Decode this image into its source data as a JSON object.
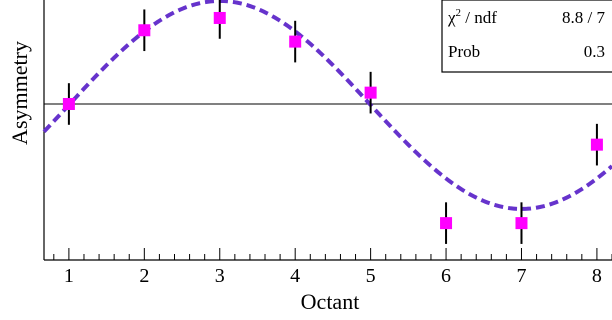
{
  "chart_data": {
    "type": "scatter",
    "xlabel": "Octant",
    "ylabel": "Asymmetry",
    "xlim": [
      0.67,
      8.2
    ],
    "ylim": [
      -1.65,
      1.1
    ],
    "x_ticks": [
      1,
      2,
      3,
      4,
      5,
      6,
      7,
      8
    ],
    "x_minor_tick_step": 0.2,
    "reference_line_y": 0,
    "series": [
      {
        "kind": "points_with_errors",
        "color": "#ff00ff",
        "points": [
          {
            "x": 1,
            "y": 0.0,
            "err": 0.22
          },
          {
            "x": 2,
            "y": 0.78,
            "err": 0.22
          },
          {
            "x": 3,
            "y": 0.91,
            "err": 0.22
          },
          {
            "x": 4,
            "y": 0.66,
            "err": 0.22
          },
          {
            "x": 5,
            "y": 0.12,
            "err": 0.22
          },
          {
            "x": 6,
            "y": -1.26,
            "err": 0.22
          },
          {
            "x": 7,
            "y": -1.26,
            "err": 0.22
          },
          {
            "x": 8,
            "y": -0.43,
            "err": 0.22
          }
        ]
      },
      {
        "kind": "fit_curve",
        "color": "#6633cc",
        "style": "dashed",
        "amplitude": 1.1,
        "offset": -0.01,
        "phase_center_x": 3,
        "period_x": 8
      }
    ],
    "stats_box": {
      "placement": "top-right",
      "rows": [
        {
          "label_main": "χ",
          "label_sup": "2",
          "label_rest": " / ndf",
          "value": "8.8 / 7"
        },
        {
          "label_main": "Prob",
          "label_sup": "",
          "label_rest": "",
          "value": "0.3"
        }
      ]
    }
  }
}
